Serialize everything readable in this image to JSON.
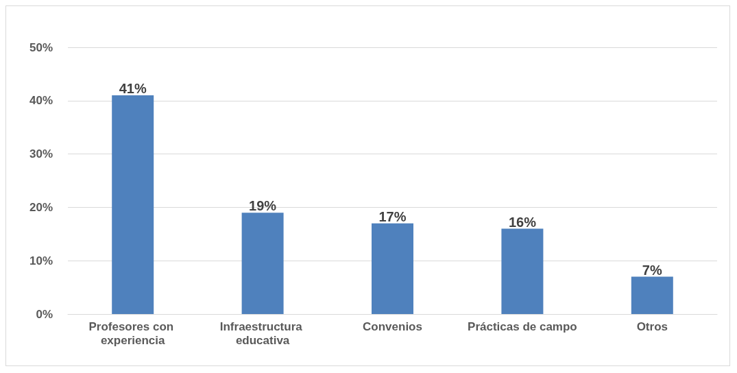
{
  "chart_data": {
    "type": "bar",
    "categories": [
      "Profesores con experiencia",
      "Infraestructura educativa",
      "Convenios",
      "Prácticas de campo",
      "Otros"
    ],
    "values": [
      41,
      19,
      17,
      16,
      7
    ],
    "value_labels": [
      "41%",
      "19%",
      "17%",
      "16%",
      "7%"
    ],
    "color": "#4f81bd",
    "ylim": [
      0,
      50
    ],
    "yticks": [
      {
        "value": 0,
        "label": "0%"
      },
      {
        "value": 10,
        "label": "10%"
      },
      {
        "value": 20,
        "label": "20%"
      },
      {
        "value": 30,
        "label": "30%"
      },
      {
        "value": 40,
        "label": "40%"
      },
      {
        "value": 50,
        "label": "50%"
      }
    ],
    "grid": "y"
  }
}
